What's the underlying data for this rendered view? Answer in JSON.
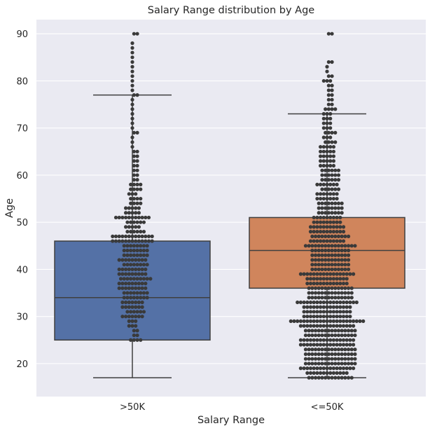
{
  "chart_data": {
    "type": "box",
    "title": "Salary Range distribution by Age",
    "xlabel": "Salary Range",
    "ylabel": "Age",
    "ylim": [
      13,
      93
    ],
    "yticks": [
      20,
      30,
      40,
      50,
      60,
      70,
      80,
      90
    ],
    "grid": true,
    "legend": "none",
    "categories": [
      ">50K",
      "<=50K"
    ],
    "boxes": [
      {
        "category": ">50K",
        "whisker_low": 17,
        "q1": 25,
        "median": 34,
        "q3": 46,
        "whisker_high": 77,
        "color": "#5471a6"
      },
      {
        "category": "<=50K",
        "whisker_low": 17,
        "q1": 36,
        "median": 44,
        "q3": 51,
        "whisker_high": 73,
        "color": "#d0855c"
      }
    ],
    "swarm": [
      {
        "category": ">50K",
        "points": [
          [
            25,
            4
          ],
          [
            26,
            2
          ],
          [
            27,
            2
          ],
          [
            28,
            3
          ],
          [
            29,
            3
          ],
          [
            30,
            7
          ],
          [
            31,
            6
          ],
          [
            32,
            7
          ],
          [
            33,
            7
          ],
          [
            34,
            8
          ],
          [
            35,
            8
          ],
          [
            36,
            9
          ],
          [
            37,
            9
          ],
          [
            38,
            10
          ],
          [
            39,
            9
          ],
          [
            40,
            9
          ],
          [
            41,
            8
          ],
          [
            42,
            9
          ],
          [
            43,
            8
          ],
          [
            44,
            8
          ],
          [
            45,
            8
          ],
          [
            46,
            13
          ],
          [
            47,
            13
          ],
          [
            48,
            6
          ],
          [
            49,
            5
          ],
          [
            50,
            6
          ],
          [
            51,
            11
          ],
          [
            52,
            5
          ],
          [
            53,
            5
          ],
          [
            54,
            4
          ],
          [
            55,
            4
          ],
          [
            56,
            3
          ],
          [
            57,
            4
          ],
          [
            58,
            4
          ],
          [
            59,
            2
          ],
          [
            60,
            2
          ],
          [
            61,
            2
          ],
          [
            62,
            2
          ],
          [
            63,
            2
          ],
          [
            64,
            2
          ],
          [
            65,
            2
          ],
          [
            66,
            1
          ],
          [
            67,
            1
          ],
          [
            68,
            1
          ],
          [
            69,
            2
          ],
          [
            70,
            1
          ],
          [
            71,
            1
          ],
          [
            72,
            1
          ],
          [
            73,
            1
          ],
          [
            74,
            1
          ],
          [
            75,
            1
          ],
          [
            76,
            1
          ],
          [
            77,
            2
          ],
          [
            78,
            1
          ],
          [
            79,
            1
          ],
          [
            80,
            1
          ],
          [
            81,
            1
          ],
          [
            82,
            1
          ],
          [
            83,
            1
          ],
          [
            84,
            1
          ],
          [
            85,
            1
          ],
          [
            86,
            1
          ],
          [
            87,
            1
          ],
          [
            88,
            1
          ],
          [
            90,
            2
          ]
        ]
      },
      {
        "category": "<=50K",
        "points": [
          [
            17,
            14
          ],
          [
            18,
            13
          ],
          [
            19,
            17
          ],
          [
            20,
            16
          ],
          [
            21,
            16
          ],
          [
            22,
            16
          ],
          [
            23,
            16
          ],
          [
            24,
            17
          ],
          [
            25,
            17
          ],
          [
            26,
            16
          ],
          [
            27,
            16
          ],
          [
            28,
            17
          ],
          [
            29,
            23
          ],
          [
            30,
            15
          ],
          [
            31,
            15
          ],
          [
            32,
            15
          ],
          [
            33,
            19
          ],
          [
            34,
            14
          ],
          [
            35,
            14
          ],
          [
            36,
            14
          ],
          [
            37,
            13
          ],
          [
            38,
            13
          ],
          [
            39,
            17
          ],
          [
            40,
            12
          ],
          [
            41,
            12
          ],
          [
            42,
            12
          ],
          [
            43,
            12
          ],
          [
            44,
            12
          ],
          [
            45,
            16
          ],
          [
            46,
            11
          ],
          [
            47,
            12
          ],
          [
            48,
            11
          ],
          [
            49,
            11
          ],
          [
            50,
            9
          ],
          [
            51,
            9
          ],
          [
            52,
            8
          ],
          [
            53,
            8
          ],
          [
            54,
            8
          ],
          [
            55,
            7
          ],
          [
            56,
            7
          ],
          [
            57,
            6
          ],
          [
            58,
            7
          ],
          [
            59,
            6
          ],
          [
            60,
            6
          ],
          [
            61,
            6
          ],
          [
            62,
            5
          ],
          [
            63,
            5
          ],
          [
            64,
            5
          ],
          [
            65,
            5
          ],
          [
            66,
            5
          ],
          [
            67,
            4
          ],
          [
            68,
            3
          ],
          [
            69,
            4
          ],
          [
            70,
            3
          ],
          [
            71,
            3
          ],
          [
            72,
            3
          ],
          [
            73,
            3
          ],
          [
            74,
            4
          ],
          [
            75,
            2
          ],
          [
            76,
            2
          ],
          [
            77,
            2
          ],
          [
            78,
            2
          ],
          [
            79,
            2
          ],
          [
            80,
            3
          ],
          [
            81,
            2
          ],
          [
            82,
            1
          ],
          [
            83,
            1
          ],
          [
            84,
            2
          ],
          [
            90,
            2
          ]
        ]
      }
    ]
  }
}
